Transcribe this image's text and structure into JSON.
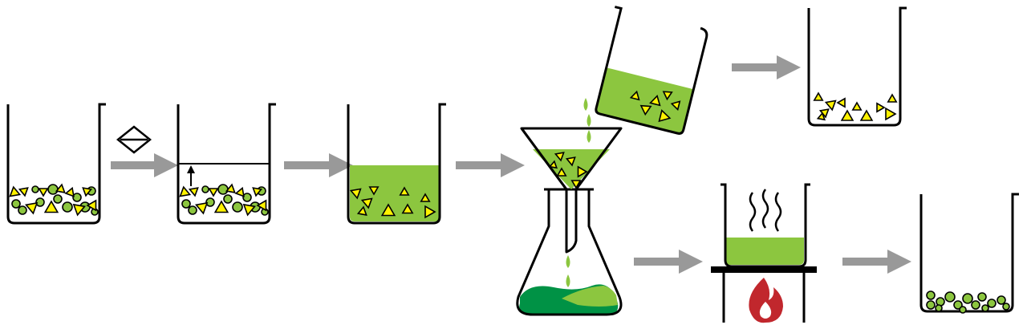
{
  "title": "",
  "colors": {
    "outline": "#000000",
    "solution": "#8cc63f",
    "filtrate_dark": "#009245",
    "crystal": "#fff200",
    "particle": "#8cc63f",
    "arrow": "#999999",
    "flame": "#c1272d",
    "hotplate": "#000000"
  },
  "steps": [
    {
      "id": "mixture",
      "icons": [
        "beaker-icon",
        "triangle-crystals",
        "circle-particles"
      ]
    },
    {
      "id": "add-solvent",
      "icons": [
        "beaker-icon",
        "solvent-symbol-icon",
        "fill-level-arrow-icon"
      ]
    },
    {
      "id": "dissolved",
      "icons": [
        "beaker-icon",
        "green-solution"
      ]
    },
    {
      "id": "filtration",
      "icons": [
        "funnel-icon",
        "erlenmeyer-flask-icon",
        "drip-icon"
      ]
    },
    {
      "id": "residue-collected",
      "icons": [
        "tilted-beaker-icon",
        "beaker-icon"
      ]
    },
    {
      "id": "evaporation",
      "icons": [
        "hotplate-icon",
        "flame-icon",
        "steam-icon"
      ]
    },
    {
      "id": "crystals-obtained",
      "icons": [
        "beaker-icon",
        "circle-particles"
      ]
    }
  ]
}
